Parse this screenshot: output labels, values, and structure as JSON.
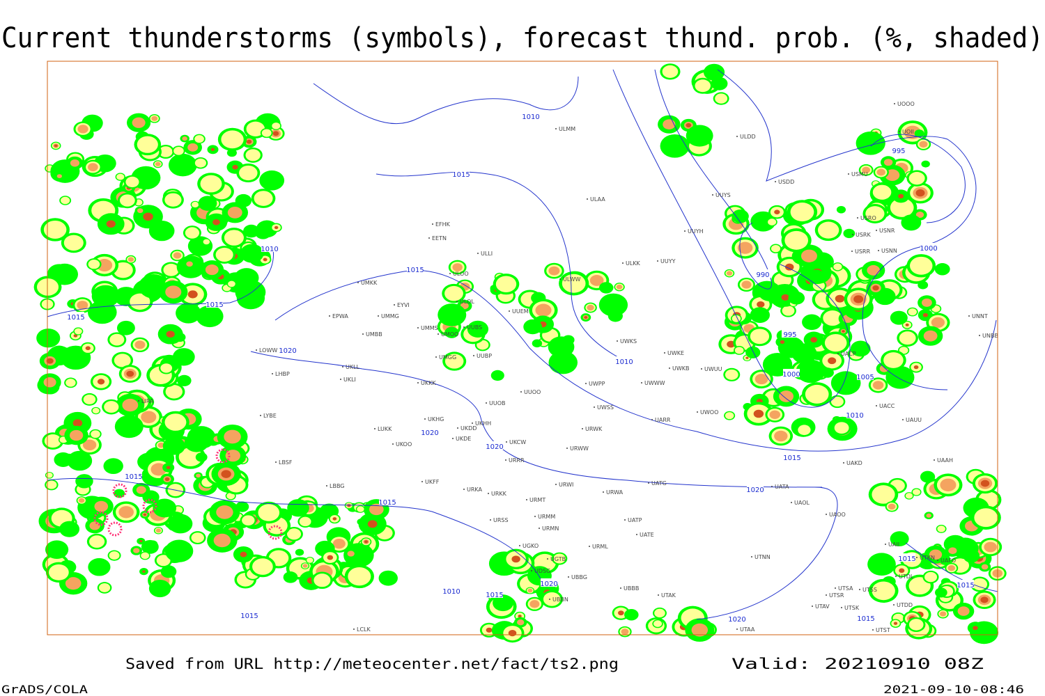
{
  "header": {
    "title": "Current thunderstorms (symbols), forecast thund. prob. (%, shaded)"
  },
  "isobars": [
    "1010",
    "1015",
    "1010",
    "1015",
    "1015",
    "1015",
    "1020",
    "1020",
    "1020",
    "1015",
    "1015",
    "1010",
    "1015",
    "1020",
    "1015",
    "1020",
    "1015",
    "1015",
    "1015",
    "1020",
    "1015",
    "1010",
    "1005",
    "1000",
    "995",
    "990",
    "1000",
    "995",
    "1010"
  ],
  "stations": [
    "EFHK",
    "EETN",
    "ULLI",
    "ULOO",
    "ULOL",
    "UUEM",
    "UMKK",
    "EYVI",
    "EPWA",
    "UMMG",
    "UMMS",
    "UMOO",
    "UUBS",
    "UMBB",
    "LOWW",
    "UKLL",
    "UKLI",
    "LHBP",
    "UMGG",
    "UUBP",
    "UKKK",
    "LIRA",
    "UUOB",
    "UUOO",
    "LYBE",
    "UKHH",
    "UKHG",
    "LUKK",
    "UKDD",
    "UKDE",
    "UKOO",
    "UKCW",
    "URRR",
    "LBSF",
    "LBBG",
    "UKFF",
    "URKA",
    "URKK",
    "URWI",
    "UATG",
    "UATA",
    "URWA",
    "URMT",
    "UAOL",
    "URSS",
    "URMM",
    "UATP",
    "UAOO",
    "URMN",
    "UATE",
    "UGKO",
    "UGTB",
    "URML",
    "UTNN",
    "UDSG",
    "UBBG",
    "UBBN",
    "ULAA",
    "UUYS",
    "UUYH",
    "ULKK",
    "UUYY",
    "ULWW",
    "UWKS",
    "UWKE",
    "UWKB",
    "UWUU",
    "UWPP",
    "UWWW",
    "UWSS",
    "UARR",
    "UWOO",
    "URWK",
    "URWW",
    "UAKD",
    "UAAH",
    "UACC",
    "UAUU",
    "UACP",
    "UNNT",
    "UNBB",
    "USRR",
    "USNN",
    "USRK",
    "USNR",
    "USRO",
    "USMU",
    "USDD",
    "ULDD",
    "UOOO",
    "UOII",
    "ULMM",
    "UTAK",
    "UBBB",
    "UTAA",
    "UTSA",
    "UTSS",
    "UTSR",
    "UTAV",
    "UTSK",
    "UTDD",
    "UTST",
    "UAFO",
    "UTKN",
    "UTDL",
    "UAII",
    "LCLK"
  ],
  "footer": {
    "source": "Saved from URL http://meteocenter.net/fact/ts2.png",
    "valid": "Valid: 20210910 08Z",
    "software": "GrADS/COLA",
    "timestamp": "2021-09-10-08:46"
  }
}
